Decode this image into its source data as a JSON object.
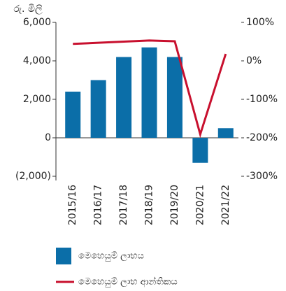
{
  "chart_data": {
    "type": "bar",
    "y_axis_label": "රු. මිලි",
    "categories": [
      "2015/16",
      "2016/17",
      "2017/18",
      "2018/19",
      "2019/20",
      "2020/21",
      "2021/22"
    ],
    "series": [
      {
        "name": "මෙහෙයුම් ලාභය",
        "type": "bar",
        "color": "#0b6ea8",
        "values": [
          2400,
          3000,
          4200,
          4700,
          4200,
          -1300,
          500
        ]
      },
      {
        "name": "මෙහෙයුම් ලාභ ආන්තිකය",
        "type": "line",
        "axis": "y2",
        "color": "#c8102e",
        "values": [
          44,
          47,
          50,
          53,
          51,
          -191,
          18
        ]
      }
    ],
    "ylim": [
      -2000,
      6000
    ],
    "yticks": [
      {
        "value": 6000,
        "label": "6,000"
      },
      {
        "value": 4000,
        "label": "4,000"
      },
      {
        "value": 2000,
        "label": "2,000"
      },
      0,
      {
        "value": -2000,
        "label": "(2,000)"
      }
    ],
    "y2lim": [
      -300,
      100
    ],
    "y2ticks": [
      {
        "value": 100,
        "label": "100%"
      },
      {
        "value": 0,
        "label": "0%"
      },
      {
        "value": -100,
        "label": "-100%"
      },
      {
        "value": -200,
        "label": "-200%"
      },
      {
        "value": -300,
        "label": "-300%"
      }
    ],
    "grid": false
  }
}
